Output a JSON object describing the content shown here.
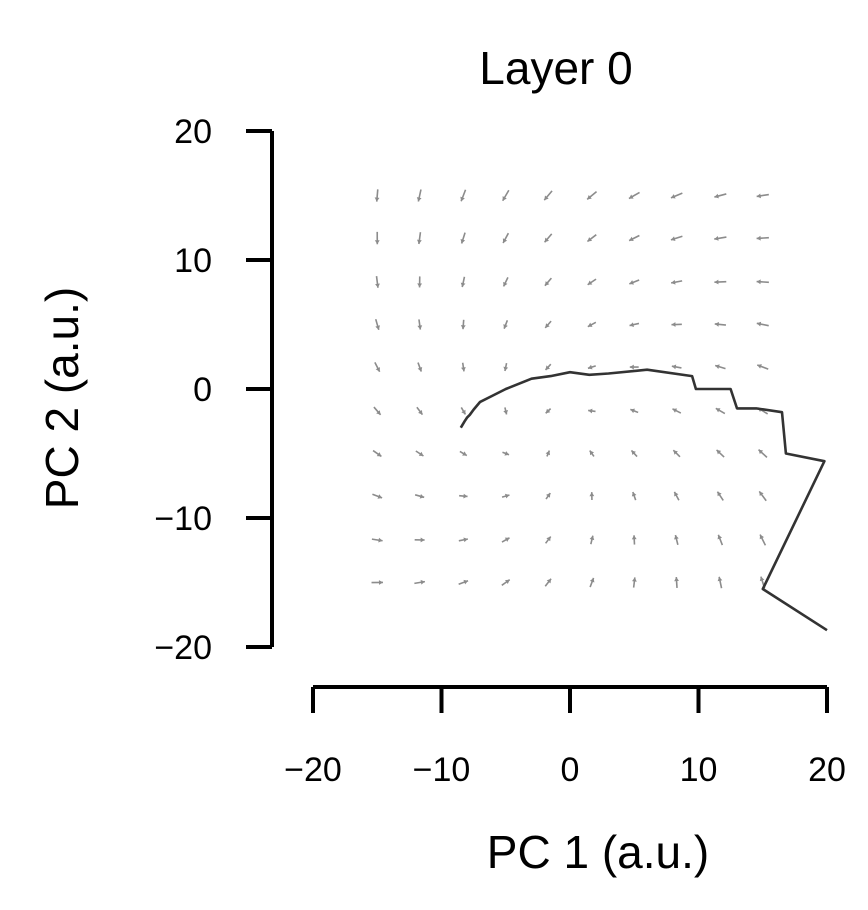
{
  "chart_data": {
    "type": "line",
    "title": "Layer 0",
    "xlabel": "PC 1 (a.u.)",
    "ylabel": "PC 2 (a.u.)",
    "xlim": [
      -20,
      20
    ],
    "ylim": [
      -20,
      20
    ],
    "xticks": [
      -20,
      -10,
      0,
      10,
      20
    ],
    "yticks": [
      20,
      10,
      0,
      -10,
      -20
    ],
    "xtick_labels": [
      "−20",
      "−10",
      "0",
      "10",
      "20"
    ],
    "ytick_labels": [
      "20",
      "10",
      "0",
      "−10",
      "−20"
    ],
    "grid": false,
    "vector_field": {
      "x": [
        -15,
        -11.7,
        -8.3,
        -5,
        -1.7,
        1.7,
        5,
        8.3,
        11.7,
        15
      ],
      "y": [
        15,
        11.7,
        8.3,
        5,
        1.7,
        -1.7,
        -5,
        -8.3,
        -11.7,
        -15
      ],
      "color": "#8c8c8c"
    },
    "series": [
      {
        "color": "#333333",
        "x": [
          -8.5,
          -8.2,
          -8.0,
          -7.8,
          -7.5,
          -7.0,
          -6.0,
          -5.0,
          -3.0,
          -1.5,
          0.0,
          1.5,
          3.0,
          6.0,
          9.5,
          9.8,
          12.5,
          13.0,
          14.5,
          16.5,
          16.8,
          19.8,
          15.0,
          20.0
        ],
        "y": [
          -3.0,
          -2.5,
          -2.2,
          -2.0,
          -1.6,
          -1.0,
          -0.5,
          0.0,
          0.8,
          1.0,
          1.3,
          1.1,
          1.2,
          1.5,
          1.0,
          0.0,
          0.0,
          -1.5,
          -1.5,
          -1.8,
          -5.0,
          -5.6,
          -15.5,
          -18.7
        ]
      }
    ]
  }
}
